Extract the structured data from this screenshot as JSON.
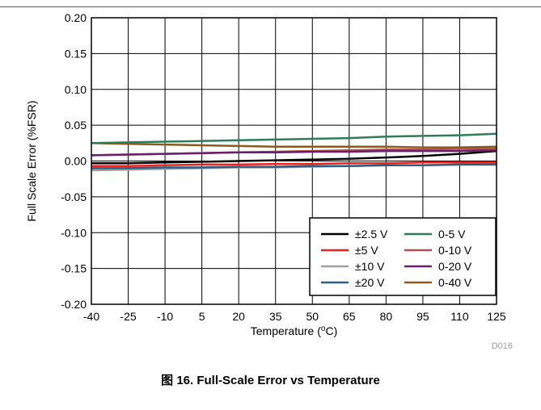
{
  "figure_code": "D016",
  "caption": "图 16. Full-Scale Error vs Temperature",
  "chart_data": {
    "type": "line",
    "xlabel": "Temperature (",
    "xlabel_sup": "o",
    "xlabel_end": "C)",
    "ylabel": "Full Scale Error (%FSR)",
    "xlim": [
      -40,
      125
    ],
    "ylim": [
      -0.2,
      0.2
    ],
    "x_ticks": [
      -40,
      -25,
      -10,
      5,
      20,
      35,
      50,
      65,
      80,
      95,
      110,
      125
    ],
    "y_ticks": [
      -0.2,
      -0.15,
      -0.1,
      -0.05,
      0.0,
      0.05,
      0.1,
      0.15,
      0.2
    ],
    "x_tick_labels": [
      "-40",
      "-25",
      "-10",
      "5",
      "20",
      "35",
      "50",
      "65",
      "80",
      "95",
      "110",
      "125"
    ],
    "y_tick_labels": [
      "-0.20",
      "-0.15",
      "-0.10",
      "-0.05",
      "0.00",
      "0.05",
      "0.10",
      "0.15",
      "0.20"
    ],
    "grid": true,
    "legend_position": "bottom-right",
    "x": [
      -40,
      -25,
      -10,
      5,
      20,
      35,
      50,
      65,
      80,
      95,
      110,
      125
    ],
    "series": [
      {
        "name": "±2.5 V",
        "color": "#000000",
        "values": [
          -0.003,
          -0.003,
          -0.002,
          -0.001,
          0.0,
          0.001,
          0.002,
          0.003,
          0.005,
          0.007,
          0.01,
          0.014
        ]
      },
      {
        "name": "±5 V",
        "color": "#e8221f",
        "values": [
          -0.007,
          -0.007,
          -0.006,
          -0.005,
          -0.005,
          -0.004,
          -0.004,
          -0.003,
          -0.003,
          -0.002,
          -0.002,
          -0.002
        ]
      },
      {
        "name": "±10 V",
        "color": "#a0a0a0",
        "values": [
          -0.013,
          -0.012,
          -0.011,
          -0.01,
          -0.009,
          -0.009,
          -0.008,
          -0.007,
          -0.006,
          -0.006,
          -0.005,
          -0.005
        ]
      },
      {
        "name": "±20 V",
        "color": "#2e5e80",
        "values": [
          -0.01,
          -0.01,
          -0.009,
          -0.009,
          -0.008,
          -0.008,
          -0.007,
          -0.007,
          -0.006,
          -0.006,
          -0.005,
          -0.005
        ]
      },
      {
        "name": "0-5 V",
        "color": "#2d7d5a",
        "values": [
          0.025,
          0.026,
          0.027,
          0.028,
          0.029,
          0.03,
          0.031,
          0.032,
          0.034,
          0.035,
          0.036,
          0.038
        ]
      },
      {
        "name": "0-10 V",
        "color": "#b05050",
        "values": [
          0.008,
          0.009,
          0.01,
          0.011,
          0.012,
          0.013,
          0.014,
          0.015,
          0.016,
          0.016,
          0.017,
          0.017
        ]
      },
      {
        "name": "0-20 V",
        "color": "#6a1f6e",
        "values": [
          0.008,
          0.009,
          0.01,
          0.011,
          0.012,
          0.012,
          0.013,
          0.013,
          0.014,
          0.014,
          0.014,
          0.015
        ]
      },
      {
        "name": "0-40 V",
        "color": "#8b5a1c",
        "values": [
          0.025,
          0.024,
          0.023,
          0.022,
          0.021,
          0.02,
          0.02,
          0.02,
          0.02,
          0.019,
          0.019,
          0.02
        ]
      }
    ]
  }
}
